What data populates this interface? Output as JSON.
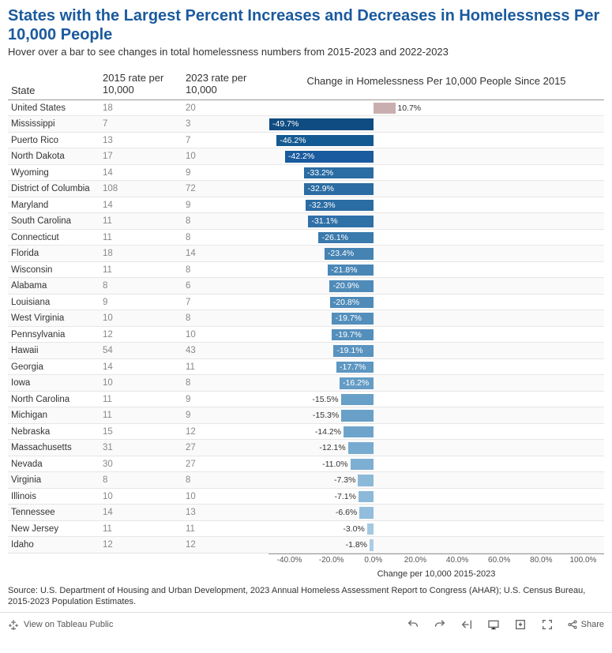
{
  "title": "States with the Largest Percent Increases and Decreases in Homelessness Per 10,000 People",
  "subtitle": "Hover over a bar to see changes in total homelessness numbers from 2015-2023 and 2022-2023",
  "columns": {
    "state": "State",
    "rate2015": "2015 rate per 10,000",
    "rate2023": "2023 rate per 10,000",
    "chartTitle": "Change in Homelessness Per 10,000 People Since 2015"
  },
  "chart": {
    "type": "bar",
    "xmin": -50,
    "xmax": 110,
    "ticks": [
      -40,
      -20,
      0,
      20,
      40,
      60,
      80,
      100
    ],
    "tickLabels": [
      "-40.0%",
      "-20.0%",
      "0.0%",
      "20.0%",
      "40.0%",
      "60.0%",
      "80.0%",
      "100.0%"
    ],
    "axisLabel": "Change per 10,000 2015-2023",
    "zeroPosPct": 31.25,
    "barColorNeg": "#2b6ca3",
    "barColorDarkNeg": "#1a5a9e",
    "barColorPos": "#c4a5a5",
    "barColorLight": "#7fa9c9"
  },
  "rows": [
    {
      "state": "United States",
      "r2015": "18",
      "r2023": "20",
      "val": 10.7,
      "label": "10.7%",
      "color": "#c9aeb0"
    },
    {
      "state": "Mississippi",
      "r2015": "7",
      "r2023": "3",
      "val": -49.7,
      "label": "-49.7%",
      "color": "#0f4c81"
    },
    {
      "state": "Puerto Rico",
      "r2015": "13",
      "r2023": "7",
      "val": -46.2,
      "label": "-46.2%",
      "color": "#145a92"
    },
    {
      "state": "North Dakota",
      "r2015": "17",
      "r2023": "10",
      "val": -42.2,
      "label": "-42.2%",
      "color": "#1a5a9e"
    },
    {
      "state": "Wyoming",
      "r2015": "14",
      "r2023": "9",
      "val": -33.2,
      "label": "-33.2%",
      "color": "#2b6ca3"
    },
    {
      "state": "District of Columbia",
      "r2015": "108",
      "r2023": "72",
      "val": -32.9,
      "label": "-32.9%",
      "color": "#2b6ca3"
    },
    {
      "state": "Maryland",
      "r2015": "14",
      "r2023": "9",
      "val": -32.3,
      "label": "-32.3%",
      "color": "#2b6ca3"
    },
    {
      "state": "South Carolina",
      "r2015": "11",
      "r2023": "8",
      "val": -31.1,
      "label": "-31.1%",
      "color": "#2f70a7"
    },
    {
      "state": "Connecticut",
      "r2015": "11",
      "r2023": "8",
      "val": -26.1,
      "label": "-26.1%",
      "color": "#3a7aad"
    },
    {
      "state": "Florida",
      "r2015": "18",
      "r2023": "14",
      "val": -23.4,
      "label": "-23.4%",
      "color": "#4583b3"
    },
    {
      "state": "Wisconsin",
      "r2015": "11",
      "r2023": "8",
      "val": -21.8,
      "label": "-21.8%",
      "color": "#4a87b6"
    },
    {
      "state": "Alabama",
      "r2015": "8",
      "r2023": "6",
      "val": -20.9,
      "label": "-20.9%",
      "color": "#4f8bb9"
    },
    {
      "state": "Louisiana",
      "r2015": "9",
      "r2023": "7",
      "val": -20.8,
      "label": "-20.8%",
      "color": "#4f8bb9"
    },
    {
      "state": "West Virginia",
      "r2015": "10",
      "r2023": "8",
      "val": -19.7,
      "label": "-19.7%",
      "color": "#548fbc"
    },
    {
      "state": "Pennsylvania",
      "r2015": "12",
      "r2023": "10",
      "val": -19.7,
      "label": "-19.7%",
      "color": "#548fbc"
    },
    {
      "state": "Hawaii",
      "r2015": "54",
      "r2023": "43",
      "val": -19.1,
      "label": "-19.1%",
      "color": "#5993bf"
    },
    {
      "state": "Georgia",
      "r2015": "14",
      "r2023": "11",
      "val": -17.7,
      "label": "-17.7%",
      "color": "#5e97c2"
    },
    {
      "state": "Iowa",
      "r2015": "10",
      "r2023": "8",
      "val": -16.2,
      "label": "-16.2%",
      "color": "#649cc5"
    },
    {
      "state": "North Carolina",
      "r2015": "11",
      "r2023": "9",
      "val": -15.5,
      "label": "-15.5%",
      "color": "#69a0c8"
    },
    {
      "state": "Michigan",
      "r2015": "11",
      "r2023": "9",
      "val": -15.3,
      "label": "-15.3%",
      "color": "#69a0c8"
    },
    {
      "state": "Nebraska",
      "r2015": "15",
      "r2023": "12",
      "val": -14.2,
      "label": "-14.2%",
      "color": "#6ea4cb"
    },
    {
      "state": "Massachusetts",
      "r2015": "31",
      "r2023": "27",
      "val": -12.1,
      "label": "-12.1%",
      "color": "#78abd0"
    },
    {
      "state": "Nevada",
      "r2015": "30",
      "r2023": "27",
      "val": -11.0,
      "label": "-11.0%",
      "color": "#7dafd3"
    },
    {
      "state": "Virginia",
      "r2015": "8",
      "r2023": "8",
      "val": -7.3,
      "label": "-7.3%",
      "color": "#8db9d9"
    },
    {
      "state": "Illinois",
      "r2015": "10",
      "r2023": "10",
      "val": -7.1,
      "label": "-7.1%",
      "color": "#8db9d9"
    },
    {
      "state": "Tennessee",
      "r2015": "14",
      "r2023": "13",
      "val": -6.6,
      "label": "-6.6%",
      "color": "#92bddc"
    },
    {
      "state": "New Jersey",
      "r2015": "11",
      "r2023": "11",
      "val": -3.0,
      "label": "-3.0%",
      "color": "#a3c8e3"
    },
    {
      "state": "Idaho",
      "r2015": "12",
      "r2023": "12",
      "val": -1.8,
      "label": "-1.8%",
      "color": "#aacde6"
    }
  ],
  "source": "Source: U.S. Department of Housing and Urban Development, 2023 Annual Homeless Assessment Report to Congress (AHAR); U.S. Census Bureau, 2015-2023 Population Estimates.",
  "footer": {
    "viewOn": "View on Tableau Public",
    "share": "Share"
  }
}
